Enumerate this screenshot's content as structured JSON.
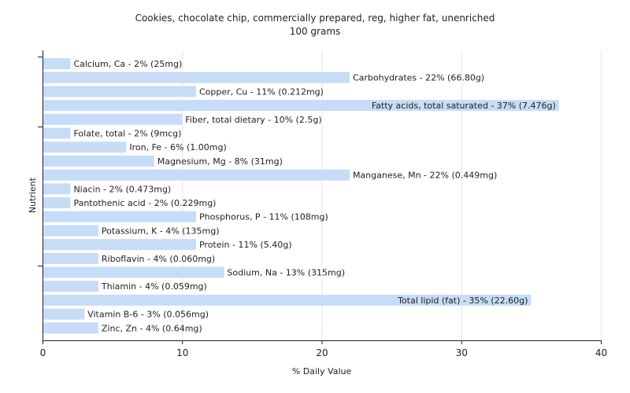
{
  "chart_data": {
    "type": "bar",
    "orientation": "horizontal",
    "title": "Cookies, chocolate chip, commercially prepared, reg, higher fat, unenriched",
    "subtitle": "100 grams",
    "xlabel": "% Daily Value",
    "ylabel": "Nutrient",
    "xlim": [
      0,
      40
    ],
    "xticks": [
      0,
      10,
      20,
      30,
      40
    ],
    "grid": true,
    "bar_color": "#c6dcf7",
    "categories": [
      "Calcium, Ca",
      "Carbohydrates",
      "Copper, Cu",
      "Fatty acids, total saturated",
      "Fiber, total dietary",
      "Folate, total",
      "Iron, Fe",
      "Magnesium, Mg",
      "Manganese, Mn",
      "Niacin",
      "Pantothenic acid",
      "Phosphorus, P",
      "Potassium, K",
      "Protein",
      "Riboflavin",
      "Sodium, Na",
      "Thiamin",
      "Total lipid (fat)",
      "Vitamin B-6",
      "Zinc, Zn"
    ],
    "values": [
      2,
      22,
      11,
      37,
      10,
      2,
      6,
      8,
      22,
      2,
      2,
      11,
      4,
      11,
      4,
      13,
      4,
      35,
      3,
      4
    ],
    "labels": [
      "Calcium, Ca - 2% (25mg)",
      "Carbohydrates - 22% (66.80g)",
      "Copper, Cu - 11% (0.212mg)",
      "Fatty acids, total saturated - 37% (7.476g)",
      "Fiber, total dietary - 10% (2.5g)",
      "Folate, total - 2% (9mcg)",
      "Iron, Fe - 6% (1.00mg)",
      "Magnesium, Mg - 8% (31mg)",
      "Manganese, Mn - 22% (0.449mg)",
      "Niacin - 2% (0.473mg)",
      "Pantothenic acid - 2% (0.229mg)",
      "Phosphorus, P - 11% (108mg)",
      "Potassium, K - 4% (135mg)",
      "Protein - 11% (5.40g)",
      "Riboflavin - 4% (0.060mg)",
      "Sodium, Na - 13% (315mg)",
      "Thiamin - 4% (0.059mg)",
      "Total lipid (fat) - 35% (22.60g)",
      "Vitamin B-6 - 3% (0.056mg)",
      "Zinc, Zn - 4% (0.64mg)"
    ]
  }
}
